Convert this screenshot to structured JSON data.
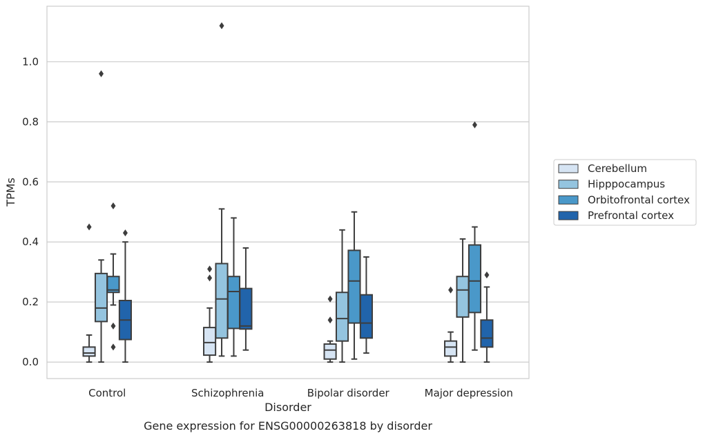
{
  "chart_data": {
    "type": "box",
    "title": "Gene expression for ENSG00000263818 by disorder",
    "xlabel": "Disorder",
    "ylabel": "TPMs",
    "ylim": [
      -0.055,
      1.185
    ],
    "yticks": [
      0.0,
      0.2,
      0.4,
      0.6,
      0.8,
      1.0
    ],
    "ytick_labels": [
      "0.0",
      "0.2",
      "0.4",
      "0.6",
      "0.8",
      "1.0"
    ],
    "grid": true,
    "legend_position": "right",
    "categories": [
      "Control",
      "Schizophrenia",
      "Bipolar disorder",
      "Major depression"
    ],
    "series": [
      {
        "name": "Cerebellum",
        "color": "#d6e4f3",
        "boxes": [
          {
            "whisker_low": 0.0,
            "q1": 0.02,
            "median": 0.03,
            "q3": 0.05,
            "whisker_high": 0.09,
            "outliers": [
              0.45
            ]
          },
          {
            "whisker_low": 0.0,
            "q1": 0.023,
            "median": 0.065,
            "q3": 0.115,
            "whisker_high": 0.18,
            "outliers": [
              0.28,
              0.31
            ]
          },
          {
            "whisker_low": 0.0,
            "q1": 0.01,
            "median": 0.04,
            "q3": 0.06,
            "whisker_high": 0.07,
            "outliers": [
              0.14,
              0.21
            ]
          },
          {
            "whisker_low": 0.0,
            "q1": 0.02,
            "median": 0.05,
            "q3": 0.07,
            "whisker_high": 0.1,
            "outliers": [
              0.24
            ]
          }
        ]
      },
      {
        "name": "Hipppocampus",
        "color": "#94c4df",
        "boxes": [
          {
            "whisker_low": 0.0,
            "q1": 0.135,
            "median": 0.18,
            "q3": 0.295,
            "whisker_high": 0.34,
            "outliers": [
              0.96
            ]
          },
          {
            "whisker_low": 0.02,
            "q1": 0.08,
            "median": 0.21,
            "q3": 0.328,
            "whisker_high": 0.51,
            "outliers": [
              1.12
            ]
          },
          {
            "whisker_low": 0.0,
            "q1": 0.07,
            "median": 0.145,
            "q3": 0.232,
            "whisker_high": 0.44,
            "outliers": []
          },
          {
            "whisker_low": 0.0,
            "q1": 0.15,
            "median": 0.24,
            "q3": 0.285,
            "whisker_high": 0.41,
            "outliers": []
          }
        ]
      },
      {
        "name": "Orbitofrontal cortex",
        "color": "#4a98c9",
        "boxes": [
          {
            "whisker_low": 0.19,
            "q1": 0.232,
            "median": 0.24,
            "q3": 0.285,
            "whisker_high": 0.36,
            "outliers": [
              0.52,
              0.12,
              0.05
            ]
          },
          {
            "whisker_low": 0.02,
            "q1": 0.112,
            "median": 0.235,
            "q3": 0.285,
            "whisker_high": 0.48,
            "outliers": []
          },
          {
            "whisker_low": 0.01,
            "q1": 0.13,
            "median": 0.27,
            "q3": 0.372,
            "whisker_high": 0.5,
            "outliers": []
          },
          {
            "whisker_low": 0.04,
            "q1": 0.165,
            "median": 0.27,
            "q3": 0.39,
            "whisker_high": 0.45,
            "outliers": [
              0.79
            ]
          }
        ]
      },
      {
        "name": "Prefrontal cortex",
        "color": "#2164ab",
        "boxes": [
          {
            "whisker_low": 0.0,
            "q1": 0.075,
            "median": 0.14,
            "q3": 0.205,
            "whisker_high": 0.4,
            "outliers": [
              0.43
            ]
          },
          {
            "whisker_low": 0.04,
            "q1": 0.11,
            "median": 0.12,
            "q3": 0.245,
            "whisker_high": 0.38,
            "outliers": []
          },
          {
            "whisker_low": 0.03,
            "q1": 0.08,
            "median": 0.13,
            "q3": 0.224,
            "whisker_high": 0.35,
            "outliers": []
          },
          {
            "whisker_low": 0.0,
            "q1": 0.05,
            "median": 0.08,
            "q3": 0.14,
            "whisker_high": 0.25,
            "outliers": [
              0.29
            ]
          }
        ]
      }
    ]
  },
  "colors": {
    "grid": "#cccccc",
    "spine": "#cccccc",
    "line": "#3d3d3d",
    "text": "#262626"
  }
}
